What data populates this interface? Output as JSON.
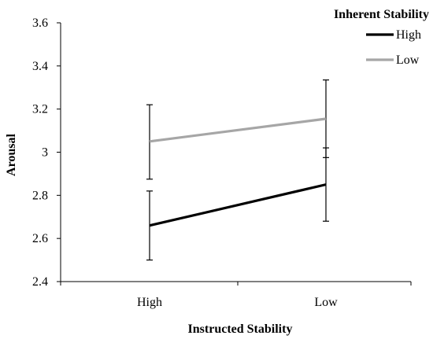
{
  "chart_data": {
    "type": "line",
    "title": "",
    "xlabel": "Instructed Stability",
    "ylabel": "Arousal",
    "categories": [
      "High",
      "Low"
    ],
    "ylim": [
      2.4,
      3.6
    ],
    "yticks": [
      "2.4",
      "2.6",
      "2.8",
      "3",
      "3.2",
      "3.4",
      "3.6"
    ],
    "grid": false,
    "legend": {
      "title": "Inherent Stability",
      "placement": "top-right"
    },
    "series": [
      {
        "name": "High",
        "color": "#000000",
        "values": [
          2.66,
          2.85
        ],
        "error_low": [
          2.5,
          2.68
        ],
        "error_high": [
          2.82,
          3.02
        ]
      },
      {
        "name": "Low",
        "color": "#a6a6a6",
        "values": [
          3.05,
          3.155
        ],
        "error_low": [
          2.875,
          2.975
        ],
        "error_high": [
          3.22,
          3.335
        ]
      }
    ]
  }
}
